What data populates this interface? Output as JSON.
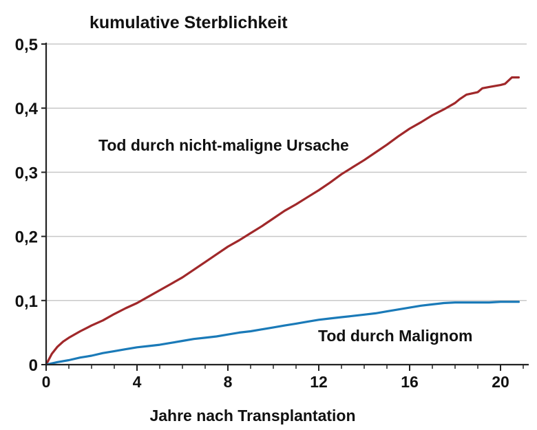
{
  "chart_data": {
    "type": "line",
    "title": "kumulative Sterblichkeit",
    "xlabel": "Jahre nach Transplantation",
    "ylabel": "",
    "xlim": [
      0,
      21
    ],
    "ylim": [
      0,
      0.5
    ],
    "xticks": [
      "0",
      "4",
      "8",
      "12",
      "16",
      "20"
    ],
    "xtick_values": [
      0,
      4,
      8,
      12,
      16,
      20
    ],
    "yticks": [
      "0",
      "0,1",
      "0,2",
      "0,3",
      "0,4",
      "0,5"
    ],
    "ytick_values": [
      0,
      0.1,
      0.2,
      0.3,
      0.4,
      0.5
    ],
    "grid": "horizontal",
    "series": [
      {
        "name": "Tod durch nicht-maligne Ursache",
        "color": "#a0282a",
        "x": [
          0,
          0.25,
          0.5,
          0.75,
          1,
          1.5,
          2,
          2.5,
          3,
          3.5,
          4,
          4.5,
          5,
          5.5,
          6,
          6.5,
          7,
          7.5,
          8,
          8.5,
          9,
          9.5,
          10,
          10.5,
          11,
          11.5,
          12,
          12.5,
          13,
          13.5,
          14,
          14.5,
          15,
          15.5,
          16,
          16.5,
          17,
          17.5,
          18,
          18.2,
          18.5,
          19,
          19.2,
          19.5,
          20,
          20.2,
          20.5,
          20.8
        ],
        "y": [
          0,
          0.017,
          0.028,
          0.036,
          0.042,
          0.052,
          0.061,
          0.069,
          0.079,
          0.088,
          0.096,
          0.106,
          0.116,
          0.126,
          0.136,
          0.148,
          0.16,
          0.172,
          0.184,
          0.194,
          0.205,
          0.216,
          0.228,
          0.24,
          0.25,
          0.261,
          0.272,
          0.284,
          0.297,
          0.308,
          0.319,
          0.331,
          0.343,
          0.356,
          0.368,
          0.378,
          0.389,
          0.398,
          0.408,
          0.414,
          0.421,
          0.425,
          0.431,
          0.433,
          0.436,
          0.438,
          0.448,
          0.448
        ]
      },
      {
        "name": "Tod durch Malignom",
        "color": "#1a7ab8",
        "x": [
          0,
          0.5,
          1,
          1.5,
          2,
          2.5,
          3,
          3.5,
          4,
          4.5,
          5,
          5.5,
          6,
          6.5,
          7,
          7.5,
          8,
          8.5,
          9,
          9.5,
          10,
          10.5,
          11,
          11.5,
          12,
          12.5,
          13,
          13.5,
          14,
          14.5,
          15,
          15.5,
          16,
          16.5,
          17,
          17.5,
          18,
          18.5,
          19,
          19.5,
          20,
          20.5,
          20.8
        ],
        "y": [
          0,
          0.004,
          0.007,
          0.011,
          0.014,
          0.018,
          0.021,
          0.024,
          0.027,
          0.029,
          0.031,
          0.034,
          0.037,
          0.04,
          0.042,
          0.044,
          0.047,
          0.05,
          0.052,
          0.055,
          0.058,
          0.061,
          0.064,
          0.067,
          0.07,
          0.072,
          0.074,
          0.076,
          0.078,
          0.08,
          0.083,
          0.086,
          0.089,
          0.092,
          0.094,
          0.096,
          0.097,
          0.097,
          0.097,
          0.097,
          0.098,
          0.098,
          0.098
        ]
      }
    ],
    "annotations": [
      {
        "text": "Tod durch nicht-maligne Ursache",
        "x": 12.5,
        "y": 0.34,
        "series": 0
      },
      {
        "text": "Tod durch Malignom",
        "x": 12,
        "y": 0.043,
        "series": 1
      }
    ]
  }
}
